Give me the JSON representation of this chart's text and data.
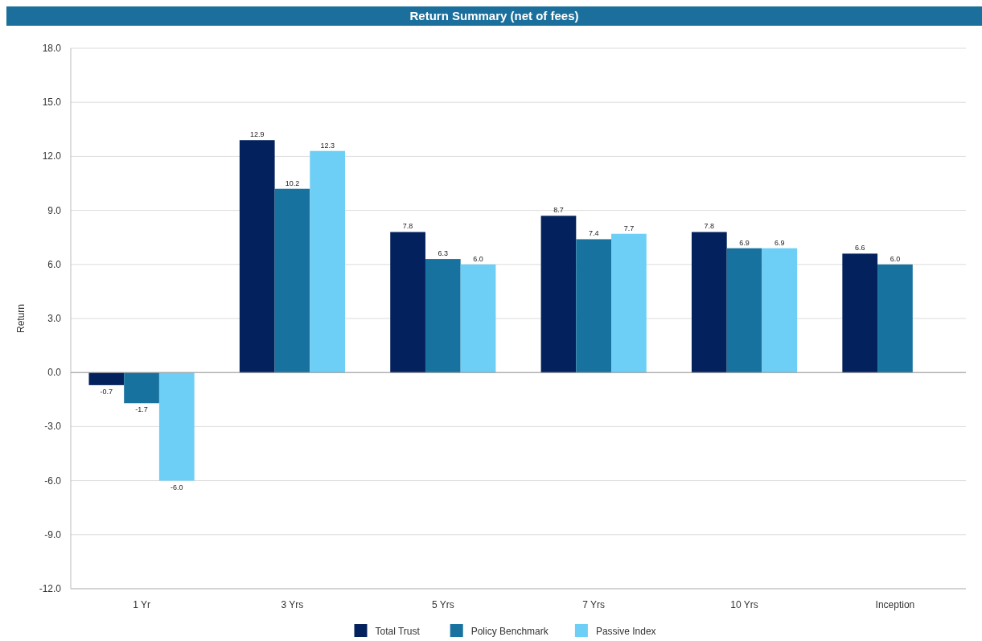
{
  "chart_data": {
    "type": "bar",
    "title": "Return Summary (net of fees)",
    "ylabel": "Return",
    "categories": [
      "1 Yr",
      "3 Yrs",
      "5 Yrs",
      "7 Yrs",
      "10 Yrs",
      "Inception"
    ],
    "series": [
      {
        "name": "Total Trust",
        "color": "#03215c",
        "values": [
          -0.7,
          12.9,
          7.8,
          8.7,
          7.8,
          6.6
        ],
        "value_labels": [
          "-0.7",
          "12.9",
          "7.8",
          "8.7",
          "7.8",
          "6.6"
        ]
      },
      {
        "name": "Policy Benchmark",
        "color": "#17729f",
        "values": [
          -1.7,
          10.2,
          6.3,
          7.4,
          6.9,
          6.0
        ],
        "value_labels": [
          "-1.7",
          "10.2",
          "6.3",
          "7.4",
          "6.9",
          "6.0"
        ]
      },
      {
        "name": "Passive Index",
        "color": "#6dcff6",
        "values": [
          -6.0,
          12.3,
          6.0,
          7.7,
          6.9,
          null
        ],
        "value_labels": [
          "-6.0",
          "12.3",
          "6.0",
          "7.7",
          "6.9",
          null
        ]
      }
    ],
    "ylim": [
      -12,
      18
    ],
    "yticks": [
      {
        "value": -12,
        "label": "-12.0"
      },
      {
        "value": -9,
        "label": "-9.0"
      },
      {
        "value": -6,
        "label": "-6.0"
      },
      {
        "value": -3,
        "label": "-3.0"
      },
      {
        "value": 0,
        "label": "0.0"
      },
      {
        "value": 3,
        "label": "3.0"
      },
      {
        "value": 6,
        "label": "6.0"
      },
      {
        "value": 9,
        "label": "9.0"
      },
      {
        "value": 12,
        "label": "12.0"
      },
      {
        "value": 15,
        "label": "15.0"
      },
      {
        "value": 18,
        "label": "18.0"
      }
    ],
    "grid": "y",
    "legend": "bottom"
  }
}
